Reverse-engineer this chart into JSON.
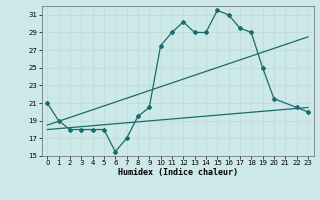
{
  "xlabel": "Humidex (Indice chaleur)",
  "ylabel": "",
  "bg_color": "#cce8e8",
  "grid_color": "#c0d8d8",
  "line_color": "#1a6b6b",
  "ylim": [
    15,
    32
  ],
  "yticks": [
    15,
    17,
    19,
    21,
    23,
    25,
    27,
    29,
    31
  ],
  "xlim": [
    -0.5,
    23.5
  ],
  "xticks": [
    0,
    1,
    2,
    3,
    4,
    5,
    6,
    7,
    8,
    9,
    10,
    11,
    12,
    13,
    14,
    15,
    16,
    17,
    18,
    19,
    20,
    21,
    22,
    23
  ],
  "line1_x": [
    0,
    1,
    2,
    3,
    4,
    5,
    6,
    7,
    8,
    9,
    10,
    11,
    12,
    13,
    14,
    15,
    16,
    17,
    18,
    19,
    20,
    22,
    23
  ],
  "line1_y": [
    21,
    19,
    18,
    18,
    18,
    18,
    15.5,
    17,
    19.5,
    20.5,
    27.5,
    29,
    30.2,
    29,
    29,
    31.5,
    31,
    29.5,
    29,
    25,
    21.5,
    20.5,
    20
  ],
  "line2_x": [
    0,
    23
  ],
  "line2_y": [
    18.5,
    28.5
  ],
  "line3_x": [
    0,
    23
  ],
  "line3_y": [
    18.0,
    20.5
  ]
}
